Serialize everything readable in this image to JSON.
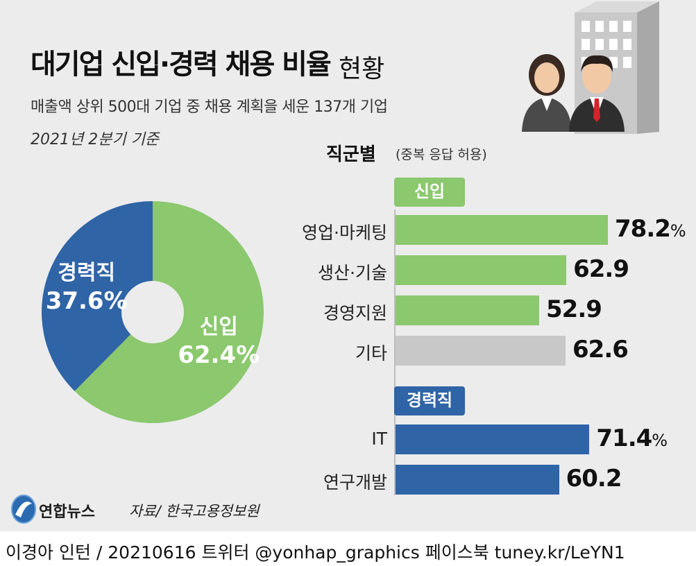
{
  "title": {
    "main": "대기업 신입·경력 채용 비율",
    "sub": "현황"
  },
  "subtitle": "매출액 상위 500대 기업 중 채용 계획을 세운 137개 기업",
  "date_note": "2021년 2분기 기준",
  "section": {
    "title": "직군별",
    "note": "(중복 응답 허용)"
  },
  "footer": {
    "logo_text": "연합뉴스",
    "source": "자료/ 한국고용정보원",
    "credit": "이경아 인턴 / 20210616 트위터 @yonhap_graphics  페이스북 tuney.kr/LeYN1"
  },
  "colors": {
    "green": "#8bc86e",
    "blue": "#2f64a6",
    "gray": "#c8c8c8",
    "panel": "#ececec"
  },
  "icons": [
    "yonhap-logo-icon",
    "office-building-icon",
    "businesswoman-icon",
    "businessman-icon"
  ],
  "chart_data": [
    {
      "type": "pie",
      "style": "donut",
      "title": "",
      "slices": [
        {
          "label": "신입",
          "value": 62.4,
          "display": "62.4%",
          "color": "#8bc86e"
        },
        {
          "label": "경력직",
          "value": 37.6,
          "display": "37.6%",
          "color": "#2f64a6"
        }
      ]
    },
    {
      "type": "bar",
      "orientation": "horizontal",
      "title": "직군별",
      "note": "(중복 응답 허용)",
      "unit": "%",
      "groups": [
        {
          "name": "신입",
          "color": "#8bc86e",
          "categories": [
            "영업·마케팅",
            "생산·기술",
            "경영지원",
            "기타"
          ],
          "values": [
            78.2,
            62.9,
            52.9,
            62.6
          ],
          "labels": [
            "78.2",
            "62.9",
            "52.9",
            "62.6"
          ],
          "show_unit": [
            true,
            false,
            false,
            false
          ],
          "colors": [
            "#8bc86e",
            "#8bc86e",
            "#8bc86e",
            "#c8c8c8"
          ]
        },
        {
          "name": "경력직",
          "color": "#2f64a6",
          "categories": [
            "IT",
            "연구개발"
          ],
          "values": [
            71.4,
            60.2
          ],
          "labels": [
            "71.4",
            "60.2"
          ],
          "show_unit": [
            true,
            false
          ],
          "colors": [
            "#2f64a6",
            "#2f64a6"
          ]
        }
      ]
    }
  ]
}
